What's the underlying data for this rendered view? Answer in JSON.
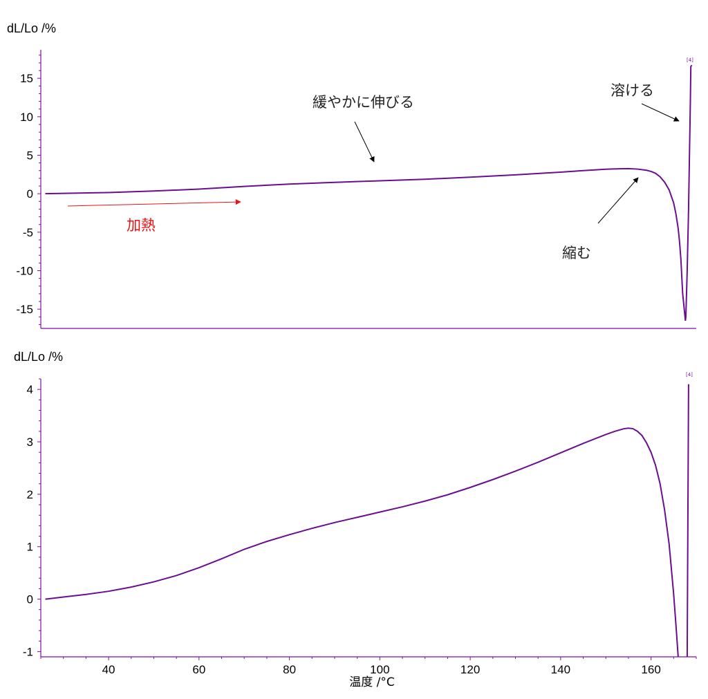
{
  "colors": {
    "series": "#6a0d91",
    "axis": "#7b0fa3",
    "text": "#000000",
    "heat_arrow": "#ee1111"
  },
  "chart_data": [
    {
      "type": "line",
      "ylabel": "dL/Lo /%",
      "xlim": [
        25,
        170
      ],
      "ylim": [
        -17.5,
        18.7
      ],
      "yticks": [
        15,
        10,
        5,
        0,
        -5,
        -10,
        -15
      ],
      "series": [
        {
          "x": [
            26,
            40,
            50,
            60,
            70,
            80,
            90,
            100,
            110,
            120,
            130,
            140,
            145,
            150,
            153,
            155,
            157,
            159,
            160,
            161,
            162,
            163,
            164,
            165,
            165.5,
            166,
            166.3,
            166.6,
            167,
            167.6,
            167.7,
            168.0,
            168.3,
            168.5,
            168.7,
            168.8,
            169.0
          ],
          "y": [
            0,
            0.15,
            0.35,
            0.6,
            0.95,
            1.25,
            1.48,
            1.68,
            1.88,
            2.15,
            2.45,
            2.8,
            3.0,
            3.18,
            3.24,
            3.26,
            3.2,
            3.05,
            2.9,
            2.65,
            2.2,
            1.5,
            0.5,
            -1.2,
            -2.6,
            -4.5,
            -6.2,
            -8.5,
            -13,
            -16.5,
            -16.0,
            -10,
            -2,
            5,
            12,
            16.5,
            16.7
          ]
        }
      ],
      "annotations": [
        {
          "text": "緩やかに伸びる"
        },
        {
          "text": "溶ける"
        },
        {
          "text": "縮む"
        },
        {
          "text": "加熱"
        }
      ],
      "marker_label": "[4]"
    },
    {
      "type": "line",
      "ylabel": "dL/Lo /%",
      "xlabel": "温度 /°C",
      "xlim": [
        25,
        170
      ],
      "ylim": [
        -1.1,
        4.2
      ],
      "xticks": [
        40,
        60,
        80,
        100,
        120,
        140,
        160
      ],
      "yticks": [
        4,
        3,
        2,
        1,
        0,
        -1
      ],
      "series": [
        {
          "x": [
            26,
            30,
            35,
            40,
            45,
            50,
            55,
            60,
            65,
            70,
            75,
            80,
            85,
            90,
            95,
            100,
            105,
            110,
            115,
            120,
            125,
            130,
            135,
            140,
            145,
            150,
            152,
            154,
            155,
            156,
            157,
            158,
            159,
            160,
            161,
            162,
            163,
            164,
            165,
            165.6,
            166.0
          ],
          "y": [
            0,
            0.04,
            0.09,
            0.15,
            0.23,
            0.33,
            0.45,
            0.6,
            0.77,
            0.95,
            1.1,
            1.23,
            1.35,
            1.46,
            1.56,
            1.66,
            1.76,
            1.87,
            1.99,
            2.13,
            2.28,
            2.44,
            2.61,
            2.79,
            2.97,
            3.14,
            3.2,
            3.25,
            3.26,
            3.25,
            3.2,
            3.12,
            2.98,
            2.8,
            2.55,
            2.2,
            1.7,
            1.05,
            0.1,
            -0.6,
            -1.1
          ]
        },
        {
          "x": [
            168.0,
            168.15,
            168.3
          ],
          "y": [
            -1.1,
            1.5,
            4.1
          ]
        }
      ],
      "marker_label": "[4]"
    }
  ]
}
